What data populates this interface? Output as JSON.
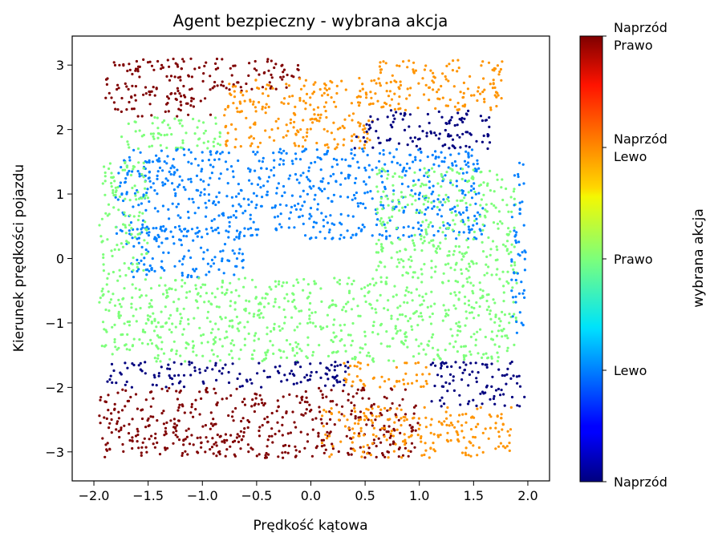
{
  "chart_data": {
    "type": "scatter",
    "title": "Agent bezpieczny - wybrana akcja",
    "xlabel": "Prędkość kątowa",
    "ylabel": "Kierunek prędkości pojazdu",
    "xlim": [
      -2.2,
      2.2
    ],
    "ylim": [
      -3.45,
      3.45
    ],
    "xticks": [
      -2.0,
      -1.5,
      -1.0,
      -0.5,
      0.0,
      0.5,
      1.0,
      1.5,
      2.0
    ],
    "xtick_labels": [
      "−2.0",
      "−1.5",
      "−1.0",
      "−0.5",
      "0.0",
      "0.5",
      "1.0",
      "1.5",
      "2.0"
    ],
    "yticks": [
      -3,
      -2,
      -1,
      0,
      1,
      2,
      3
    ],
    "ytick_labels": [
      "−3",
      "−2",
      "−1",
      "0",
      "1",
      "2",
      "3"
    ],
    "grid": false,
    "colormap": "jet",
    "colorbar": {
      "label": "wybrana akcja",
      "ticks": [
        {
          "value": 0,
          "lines": [
            "Naprzód"
          ]
        },
        {
          "value": 1,
          "lines": [
            "Lewo"
          ]
        },
        {
          "value": 2,
          "lines": [
            "Prawo"
          ]
        },
        {
          "value": 3,
          "lines": [
            "Naprzód",
            "Lewo"
          ]
        },
        {
          "value": 4,
          "lines": [
            "Naprzód",
            "Prawo"
          ]
        }
      ],
      "range": [
        0,
        4
      ]
    },
    "action_colors": {
      "Naprzód": "#00007f",
      "Lewo": "#0080ff",
      "Prawo": "#7dff7a",
      "Naprzód Lewo": "#ff9400",
      "Naprzód Prawo": "#7f0000"
    },
    "regions": [
      {
        "action": "Naprzód Prawo",
        "x": [
          -1.9,
          -0.9
        ],
        "y": [
          2.2,
          3.1
        ]
      },
      {
        "action": "Naprzód Prawo",
        "x": [
          -0.9,
          -0.1
        ],
        "y": [
          2.6,
          3.1
        ]
      },
      {
        "action": "Prawo",
        "x": [
          -1.75,
          -0.8
        ],
        "y": [
          1.7,
          2.2
        ]
      },
      {
        "action": "Naprzód Lewo",
        "x": [
          -0.8,
          0.6
        ],
        "y": [
          1.7,
          2.8
        ]
      },
      {
        "action": "Naprzód Lewo",
        "x": [
          0.6,
          1.8
        ],
        "y": [
          2.3,
          3.1
        ]
      },
      {
        "action": "Naprzód",
        "x": [
          0.4,
          1.65
        ],
        "y": [
          1.7,
          2.3
        ]
      },
      {
        "action": "Lewo",
        "x": [
          -1.8,
          1.6
        ],
        "y": [
          0.3,
          1.7
        ]
      },
      {
        "action": "Lewo",
        "x": [
          -1.7,
          -0.6
        ],
        "y": [
          -0.3,
          0.5
        ]
      },
      {
        "action": "Prawo",
        "x": [
          -1.95,
          -1.5
        ],
        "y": [
          -1.5,
          1.5
        ]
      },
      {
        "action": "Prawo",
        "x": [
          -1.5,
          1.9
        ],
        "y": [
          -1.6,
          -0.3
        ]
      },
      {
        "action": "Prawo",
        "x": [
          0.6,
          1.9
        ],
        "y": [
          -0.3,
          1.4
        ]
      },
      {
        "action": "Lewo",
        "x": [
          1.85,
          1.98
        ],
        "y": [
          -1.2,
          1.5
        ]
      },
      {
        "action": "Naprzód",
        "x": [
          -1.9,
          0.4
        ],
        "y": [
          -2.0,
          -1.6
        ]
      },
      {
        "action": "Naprzód Lewo",
        "x": [
          0.3,
          1.1
        ],
        "y": [
          -2.0,
          -1.6
        ]
      },
      {
        "action": "Naprzód",
        "x": [
          1.1,
          1.98
        ],
        "y": [
          -2.3,
          -1.6
        ]
      },
      {
        "action": "Naprzód Prawo",
        "x": [
          -1.95,
          1.0
        ],
        "y": [
          -3.1,
          -2.0
        ]
      },
      {
        "action": "Naprzód Lewo",
        "x": [
          0.1,
          1.85
        ],
        "y": [
          -3.1,
          -2.3
        ]
      }
    ]
  }
}
